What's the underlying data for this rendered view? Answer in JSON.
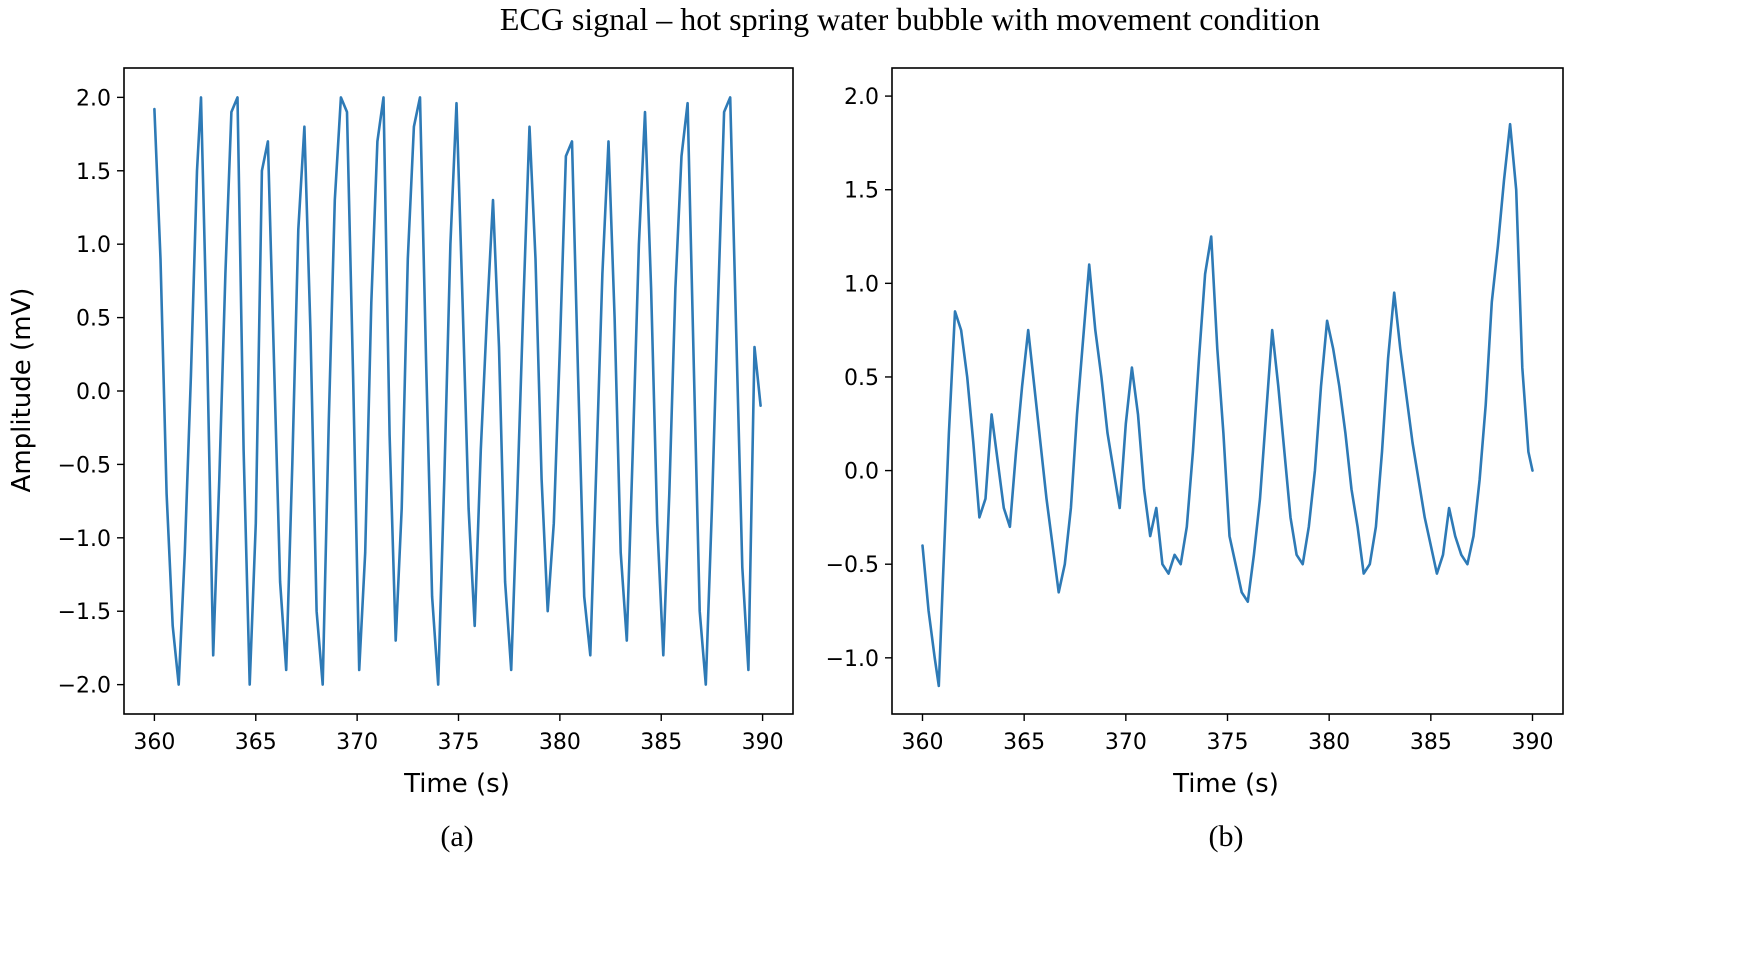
{
  "figure_title": "ECG signal – hot spring water bubble with movement condition",
  "colors": {
    "line": "#2e7ab6",
    "axes": "#000000",
    "background": "#ffffff"
  },
  "chart_data": [
    {
      "id": "a",
      "type": "line",
      "caption": "(a)",
      "title": "",
      "xlabel": "Time (s)",
      "ylabel": "Amplitude (mV)",
      "xlim": [
        358.5,
        391.5
      ],
      "ylim": [
        -2.2,
        2.2
      ],
      "xticks": [
        360,
        365,
        370,
        375,
        380,
        385,
        390
      ],
      "xtick_labels": [
        "360",
        "365",
        "370",
        "375",
        "380",
        "385",
        "390"
      ],
      "yticks": [
        -2.0,
        -1.5,
        -1.0,
        -0.5,
        0.0,
        0.5,
        1.0,
        1.5,
        2.0
      ],
      "ytick_labels": [
        "−2.0",
        "−1.5",
        "−1.0",
        "−0.5",
        "0.0",
        "0.5",
        "1.0",
        "1.5",
        "2.0"
      ],
      "series": [
        {
          "name": "ECG",
          "x": [
            360.0,
            360.3,
            360.6,
            360.9,
            361.2,
            361.5,
            361.8,
            362.1,
            362.3,
            362.6,
            362.9,
            363.2,
            363.5,
            363.8,
            364.1,
            364.4,
            364.7,
            365.0,
            365.3,
            365.6,
            365.9,
            366.2,
            366.5,
            366.8,
            367.1,
            367.4,
            367.7,
            368.0,
            368.3,
            368.6,
            368.9,
            369.2,
            369.5,
            369.8,
            370.1,
            370.4,
            370.7,
            371.0,
            371.3,
            371.6,
            371.9,
            372.2,
            372.5,
            372.8,
            373.1,
            373.4,
            373.7,
            374.0,
            374.3,
            374.6,
            374.9,
            375.2,
            375.5,
            375.8,
            376.1,
            376.4,
            376.7,
            377.0,
            377.3,
            377.6,
            377.9,
            378.2,
            378.5,
            378.8,
            379.1,
            379.4,
            379.7,
            380.0,
            380.3,
            380.6,
            380.9,
            381.2,
            381.5,
            381.8,
            382.1,
            382.4,
            382.7,
            383.0,
            383.3,
            383.6,
            383.9,
            384.2,
            384.5,
            384.8,
            385.1,
            385.4,
            385.7,
            386.0,
            386.3,
            386.6,
            386.9,
            387.2,
            387.5,
            387.8,
            388.1,
            388.4,
            388.7,
            389.0,
            389.3,
            389.6,
            389.9
          ],
          "y": [
            1.92,
            0.9,
            -0.7,
            -1.6,
            -2.0,
            -1.1,
            0.1,
            1.5,
            2.0,
            0.3,
            -1.8,
            -0.6,
            0.8,
            1.9,
            2.0,
            -0.4,
            -2.0,
            -0.9,
            1.5,
            1.7,
            0.2,
            -1.3,
            -1.9,
            -0.5,
            1.1,
            1.8,
            0.4,
            -1.5,
            -2.0,
            -0.2,
            1.3,
            2.0,
            1.9,
            0.1,
            -1.9,
            -1.1,
            0.6,
            1.7,
            2.0,
            -0.3,
            -1.7,
            -0.8,
            0.9,
            1.8,
            2.0,
            0.2,
            -1.4,
            -2.0,
            -0.6,
            1.0,
            1.96,
            0.6,
            -0.8,
            -1.6,
            -0.4,
            0.5,
            1.3,
            0.3,
            -1.3,
            -1.9,
            -0.7,
            0.6,
            1.8,
            0.9,
            -0.6,
            -1.5,
            -0.9,
            0.3,
            1.6,
            1.7,
            0.1,
            -1.4,
            -1.8,
            -0.5,
            0.8,
            1.7,
            0.5,
            -1.1,
            -1.7,
            -0.4,
            1.0,
            1.9,
            0.7,
            -0.9,
            -1.8,
            -0.7,
            0.7,
            1.6,
            1.96,
            0.2,
            -1.5,
            -2.0,
            -0.8,
            0.6,
            1.9,
            2.0,
            0.4,
            -1.2,
            -1.9,
            0.3,
            -0.1
          ]
        }
      ]
    },
    {
      "id": "b",
      "type": "line",
      "caption": "(b)",
      "title": "",
      "xlabel": "Time (s)",
      "ylabel": "",
      "xlim": [
        358.5,
        391.5
      ],
      "ylim": [
        -1.3,
        2.15
      ],
      "xticks": [
        360,
        365,
        370,
        375,
        380,
        385,
        390
      ],
      "xtick_labels": [
        "360",
        "365",
        "370",
        "375",
        "380",
        "385",
        "390"
      ],
      "yticks": [
        -1.0,
        -0.5,
        0.0,
        0.5,
        1.0,
        1.5,
        2.0
      ],
      "ytick_labels": [
        "−1.0",
        "−0.5",
        "0.0",
        "0.5",
        "1.0",
        "1.5",
        "2.0"
      ],
      "series": [
        {
          "name": "ECG",
          "x": [
            360.0,
            360.3,
            360.6,
            360.8,
            361.0,
            361.3,
            361.6,
            361.9,
            362.2,
            362.5,
            362.8,
            363.1,
            363.4,
            363.7,
            364.0,
            364.3,
            364.6,
            364.9,
            365.2,
            365.5,
            365.8,
            366.1,
            366.4,
            366.7,
            367.0,
            367.3,
            367.6,
            367.9,
            368.2,
            368.5,
            368.8,
            369.1,
            369.4,
            369.7,
            370.0,
            370.3,
            370.6,
            370.9,
            371.2,
            371.5,
            371.8,
            372.1,
            372.4,
            372.7,
            373.0,
            373.3,
            373.6,
            373.9,
            374.2,
            374.5,
            374.8,
            375.1,
            375.4,
            375.7,
            376.0,
            376.3,
            376.6,
            376.9,
            377.2,
            377.5,
            377.8,
            378.1,
            378.4,
            378.7,
            379.0,
            379.3,
            379.6,
            379.9,
            380.2,
            380.5,
            380.8,
            381.1,
            381.4,
            381.7,
            382.0,
            382.3,
            382.6,
            382.9,
            383.2,
            383.5,
            383.8,
            384.1,
            384.4,
            384.7,
            385.0,
            385.3,
            385.6,
            385.9,
            386.2,
            386.5,
            386.8,
            387.1,
            387.4,
            387.7,
            388.0,
            388.3,
            388.6,
            388.9,
            389.2,
            389.5,
            389.8,
            390.0
          ],
          "y": [
            -0.4,
            -0.75,
            -1.0,
            -1.15,
            -0.6,
            0.2,
            0.85,
            0.75,
            0.5,
            0.15,
            -0.25,
            -0.15,
            0.3,
            0.05,
            -0.2,
            -0.3,
            0.1,
            0.45,
            0.75,
            0.45,
            0.15,
            -0.15,
            -0.4,
            -0.65,
            -0.5,
            -0.2,
            0.3,
            0.7,
            1.1,
            0.75,
            0.5,
            0.2,
            0.0,
            -0.2,
            0.25,
            0.55,
            0.3,
            -0.1,
            -0.35,
            -0.2,
            -0.5,
            -0.55,
            -0.45,
            -0.5,
            -0.3,
            0.1,
            0.6,
            1.05,
            1.25,
            0.65,
            0.2,
            -0.35,
            -0.5,
            -0.65,
            -0.7,
            -0.45,
            -0.15,
            0.3,
            0.75,
            0.45,
            0.1,
            -0.25,
            -0.45,
            -0.5,
            -0.3,
            0.0,
            0.45,
            0.8,
            0.65,
            0.45,
            0.2,
            -0.1,
            -0.3,
            -0.55,
            -0.5,
            -0.3,
            0.1,
            0.6,
            0.95,
            0.65,
            0.4,
            0.15,
            -0.05,
            -0.25,
            -0.4,
            -0.55,
            -0.45,
            -0.2,
            -0.35,
            -0.45,
            -0.5,
            -0.35,
            -0.05,
            0.35,
            0.9,
            1.2,
            1.55,
            1.85,
            1.5,
            0.55,
            0.1,
            0.0
          ]
        }
      ]
    }
  ]
}
